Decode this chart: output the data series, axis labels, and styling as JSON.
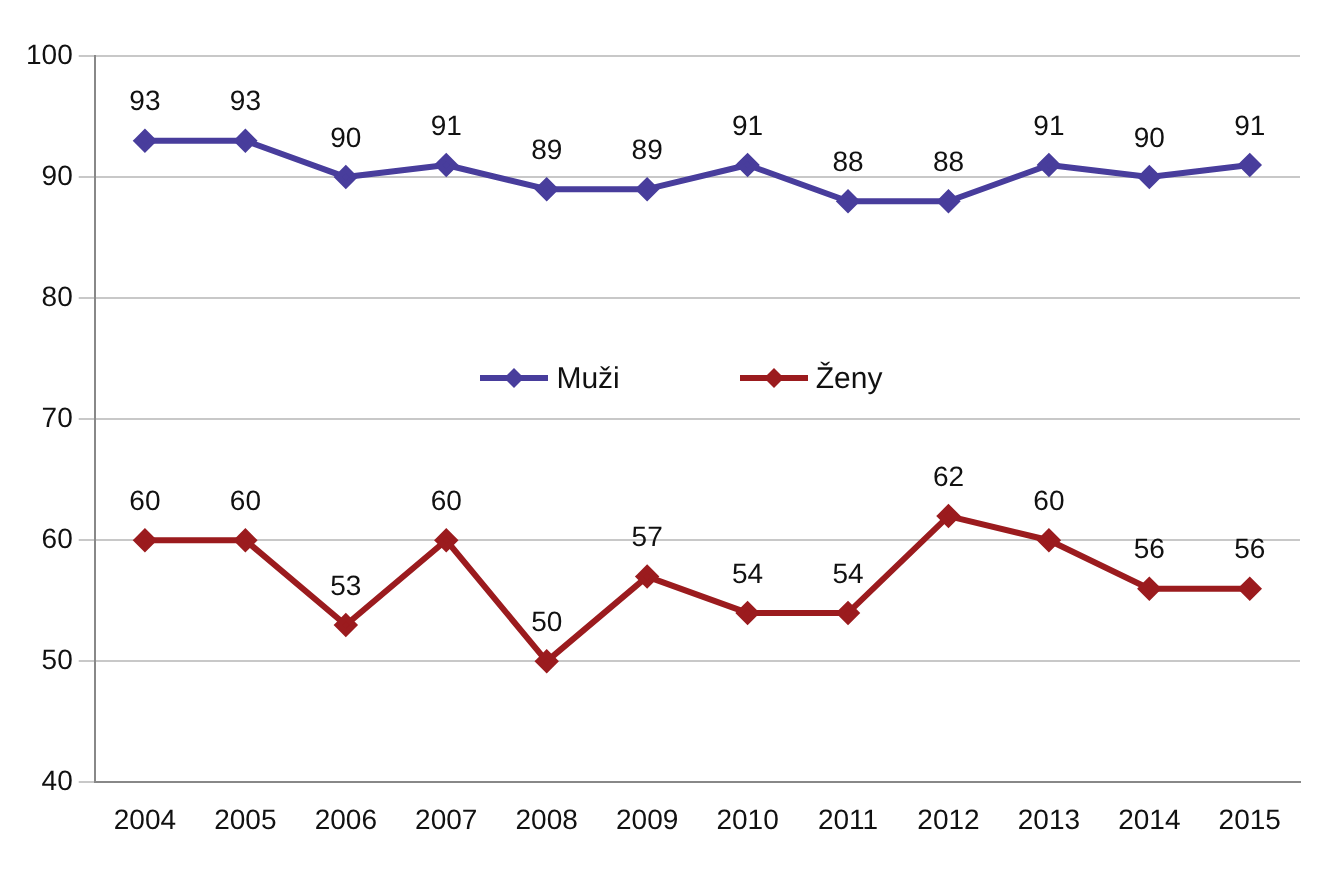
{
  "chart_data": {
    "type": "line",
    "categories": [
      "2004",
      "2005",
      "2006",
      "2007",
      "2008",
      "2009",
      "2010",
      "2011",
      "2012",
      "2013",
      "2014",
      "2015"
    ],
    "series": [
      {
        "name": "Muži",
        "color": "#483d9c",
        "values": [
          93,
          93,
          90,
          91,
          89,
          89,
          91,
          88,
          88,
          91,
          90,
          91
        ]
      },
      {
        "name": "Ženy",
        "color": "#9b1b1e",
        "values": [
          60,
          60,
          53,
          60,
          50,
          57,
          54,
          54,
          62,
          60,
          56,
          56
        ]
      }
    ],
    "ylim": [
      40,
      100
    ],
    "yticks": [
      40,
      50,
      60,
      70,
      80,
      90,
      100
    ],
    "grid": "y",
    "legend": "center",
    "marker": "diamond",
    "line_style": "solid",
    "data_labels": true
  }
}
